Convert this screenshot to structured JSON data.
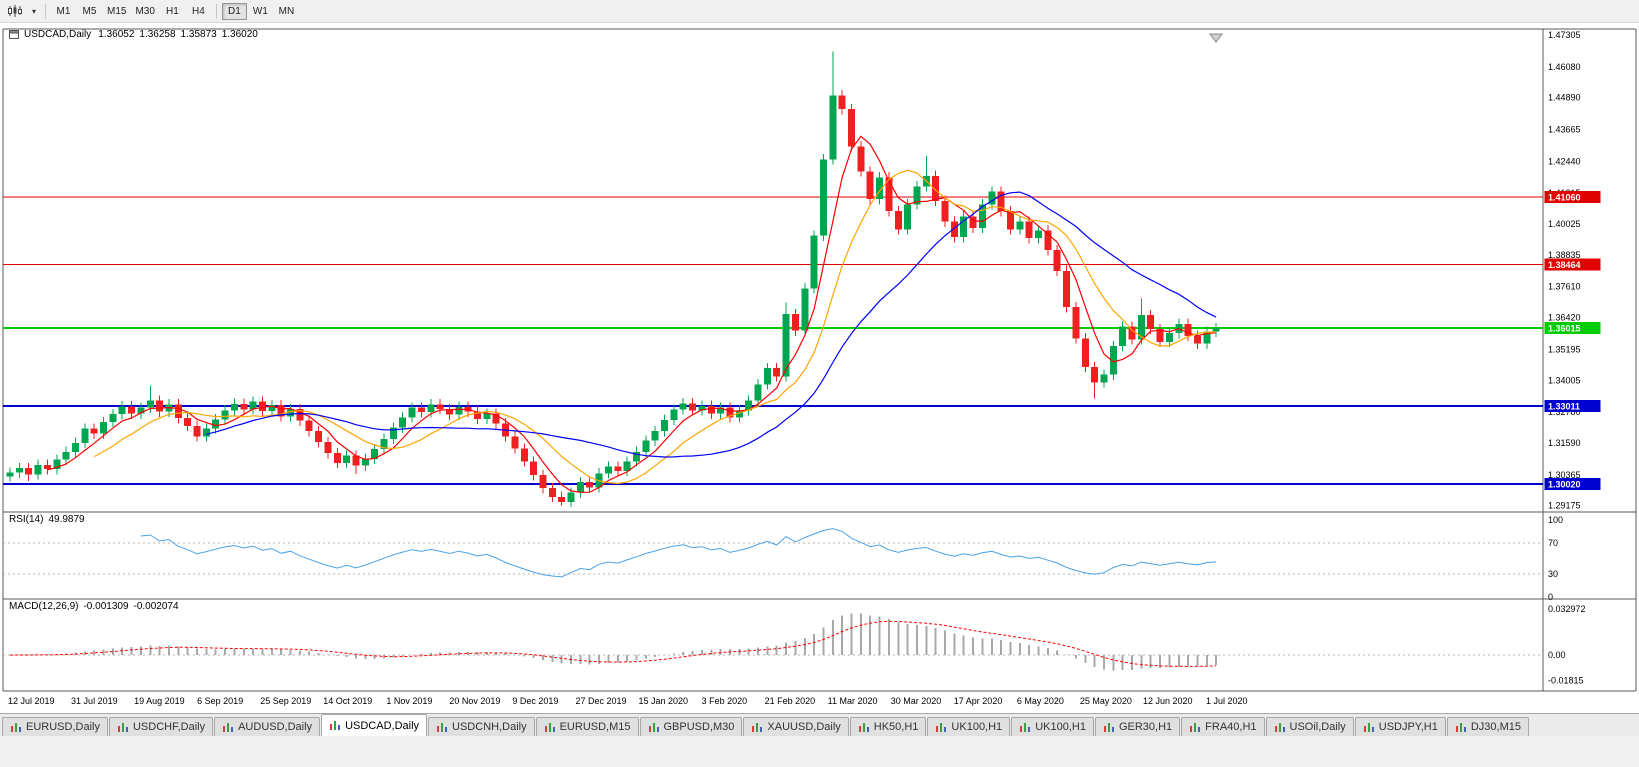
{
  "toolbar": {
    "timeframes": [
      "M1",
      "M5",
      "M15",
      "M30",
      "H1",
      "H4",
      "D1",
      "W1",
      "MN"
    ],
    "active": "D1"
  },
  "chart": {
    "symbol_period": "USDCAD,Daily",
    "ohlc": {
      "open": "1.36052",
      "high": "1.36258",
      "low": "1.35873",
      "close": "1.36020"
    }
  },
  "rsi": {
    "label": "RSI(14)",
    "value": "49.9879"
  },
  "macd": {
    "label": "MACD(12,26,9)",
    "value_main": "-0.001309",
    "value_signal": "-0.002074"
  },
  "tabs": {
    "active_index": 3,
    "items": [
      "EURUSD,Daily",
      "USDCHF,Daily",
      "AUDUSD,Daily",
      "USDCAD,Daily",
      "USDCNH,Daily",
      "EURUSD,M15",
      "GBPUSD,M30",
      "XAUUSD,Daily",
      "HK50,H1",
      "UK100,H1",
      "UK100,H1",
      "GER30,H1",
      "FRA40,H1",
      "USOil,Daily",
      "USDJPY,H1",
      "DJ30,M15"
    ],
    "icon": "mini-chart-icon"
  },
  "chart_data": {
    "type": "candlestick",
    "symbol": "USDCAD",
    "period": "Daily",
    "price_axis_ticks": [
      "1.47305",
      "1.46080",
      "1.44890",
      "1.43665",
      "1.42440",
      "1.41215",
      "1.40025",
      "1.38835",
      "1.37610",
      "1.36420",
      "1.35195",
      "1.34005",
      "1.32780",
      "1.31590",
      "1.30365",
      "1.29175"
    ],
    "date_labels": [
      "12 Jul 2019",
      "31 Jul 2019",
      "19 Aug 2019",
      "6 Sep 2019",
      "25 Sep 2019",
      "14 Oct 2019",
      "1 Nov 2019",
      "20 Nov 2019",
      "9 Dec 2019",
      "27 Dec 2019",
      "15 Jan 2020",
      "3 Feb 2020",
      "21 Feb 2020",
      "11 Mar 2020",
      "30 Mar 2020",
      "17 Apr 2020",
      "6 May 2020",
      "25 May 2020",
      "12 Jun 2020",
      "1 Jul 2020"
    ],
    "hlines": [
      {
        "price": 1.4106,
        "label": "1.41060",
        "color": "#E00000",
        "width": 1
      },
      {
        "price": 1.38464,
        "label": "1.38464",
        "color": "#E00000",
        "width": 1
      },
      {
        "price": 1.36015,
        "label": "1.36015",
        "color": "#00CC00",
        "width": 2
      },
      {
        "price": 1.33011,
        "label": "1.33011",
        "color": "#0000D0",
        "width": 2
      },
      {
        "price": 1.3002,
        "label": "1.30020",
        "color": "#0000D0",
        "width": 2
      }
    ],
    "first_open": 1.303,
    "closes": [
      1.3045,
      1.3062,
      1.3038,
      1.3075,
      1.3058,
      1.3095,
      1.3125,
      1.316,
      1.3215,
      1.3195,
      1.324,
      1.327,
      1.33,
      1.3272,
      1.3295,
      1.3322,
      1.328,
      1.3308,
      1.3255,
      1.3225,
      1.3185,
      1.3215,
      1.325,
      1.3285,
      1.331,
      1.3288,
      1.3318,
      1.3282,
      1.3305,
      1.3262,
      1.329,
      1.3245,
      1.3205,
      1.3162,
      1.312,
      1.3082,
      1.311,
      1.3072,
      1.3098,
      1.3135,
      1.3175,
      1.3218,
      1.3258,
      1.3295,
      1.3278,
      1.3308,
      1.329,
      1.3268,
      1.3298,
      1.328,
      1.3252,
      1.3272,
      1.3235,
      1.3185,
      1.3138,
      1.3088,
      1.3035,
      1.2985,
      1.2952,
      1.2932,
      1.2968,
      1.3008,
      1.2988,
      1.3042,
      1.3068,
      1.3052,
      1.3088,
      1.3125,
      1.3168,
      1.3205,
      1.3248,
      1.3288,
      1.3312,
      1.3285,
      1.3302,
      1.3272,
      1.3295,
      1.3258,
      1.3285,
      1.3322,
      1.3385,
      1.3448,
      1.3415,
      1.3655,
      1.3592,
      1.3755,
      1.3958,
      1.4252,
      1.4498,
      1.4445,
      1.4302,
      1.4205,
      1.4098,
      1.4182,
      1.4052,
      1.3982,
      1.4078,
      1.4148,
      1.4188,
      1.4092,
      1.4012,
      1.3952,
      1.4032,
      1.3988,
      1.4078,
      1.4128,
      1.4052,
      1.3982,
      1.4012,
      1.3948,
      1.3978,
      1.3902,
      1.3822,
      1.3682,
      1.3562,
      1.3452,
      1.3392,
      1.3422,
      1.3532,
      1.3608,
      1.3558,
      1.3652,
      1.3598,
      1.3548,
      1.3582,
      1.3618,
      1.3572,
      1.3542,
      1.3588,
      1.3602
    ],
    "default_wick": 0.002,
    "high_overrides": {
      "15": 1.338,
      "83": 1.37,
      "88": 1.4668,
      "98": 1.4265,
      "121": 1.3715
    },
    "low_overrides": {
      "2": 1.3012,
      "37": 1.304,
      "59": 1.2918,
      "116": 1.333
    },
    "rsi": {
      "period": 14,
      "levels": [
        100,
        70,
        30,
        0
      ]
    },
    "macd": {
      "fast": 12,
      "slow": 26,
      "signal": 9,
      "axis_ticks": [
        "0.032972",
        "0.00",
        "-0.01815"
      ]
    },
    "colors": {
      "bull": "#00A550",
      "bear": "#F02020",
      "ma_fast": "#FF0000",
      "ma_mid": "#FFA500",
      "ma_slow": "#0000FF",
      "rsi_line": "#4AA3E8",
      "rsi_level": "#B5B5B5",
      "macd_bar": "#A8A8A8",
      "macd_signal": "#FF0000",
      "frame": "#5A5A5A",
      "axis_text": "#000000"
    }
  }
}
